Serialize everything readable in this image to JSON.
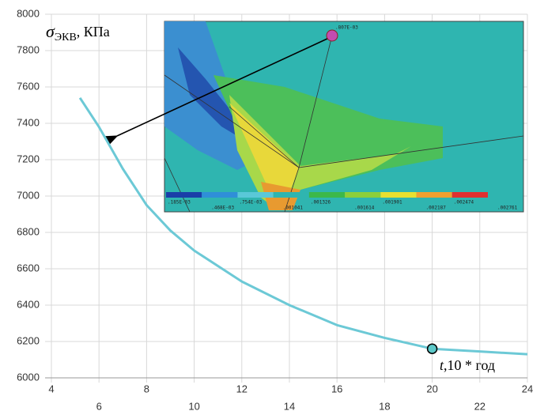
{
  "chart_data": {
    "type": "line",
    "x": [
      5.2,
      6,
      7,
      8,
      9,
      10,
      12,
      14,
      16,
      18,
      20,
      22,
      24
    ],
    "series": [
      {
        "name": "σ",
        "color": "#6cc9d6",
        "values": [
          7540,
          7380,
          7150,
          6950,
          6810,
          6700,
          6530,
          6400,
          6290,
          6220,
          6160,
          6145,
          6130
        ]
      }
    ],
    "xlim": [
      4,
      24
    ],
    "ylim": [
      6000,
      8000
    ],
    "xticks": [
      4,
      6,
      8,
      10,
      12,
      14,
      16,
      18,
      20,
      22,
      24
    ],
    "yticks": [
      6000,
      6200,
      6400,
      6600,
      6800,
      7000,
      7200,
      7400,
      7600,
      7800,
      8000
    ],
    "grid": true,
    "highlight": {
      "x": 20,
      "y": 6160
    },
    "y_label": {
      "symbol": "σ",
      "subscript": "ЭКВ",
      "unit": ", КПа"
    },
    "x_label": {
      "symbol": "t",
      "rest": ",10 * год"
    },
    "inset": {
      "point_label": ".807E-03",
      "colorbar_top": [
        ".185E-03",
        ".754E-03",
        ".001326",
        ".001901",
        ".002474"
      ],
      "colorbar_bottom": [
        ".468E-03",
        ".001041",
        ".001614",
        ".002187",
        ".002761"
      ]
    }
  }
}
